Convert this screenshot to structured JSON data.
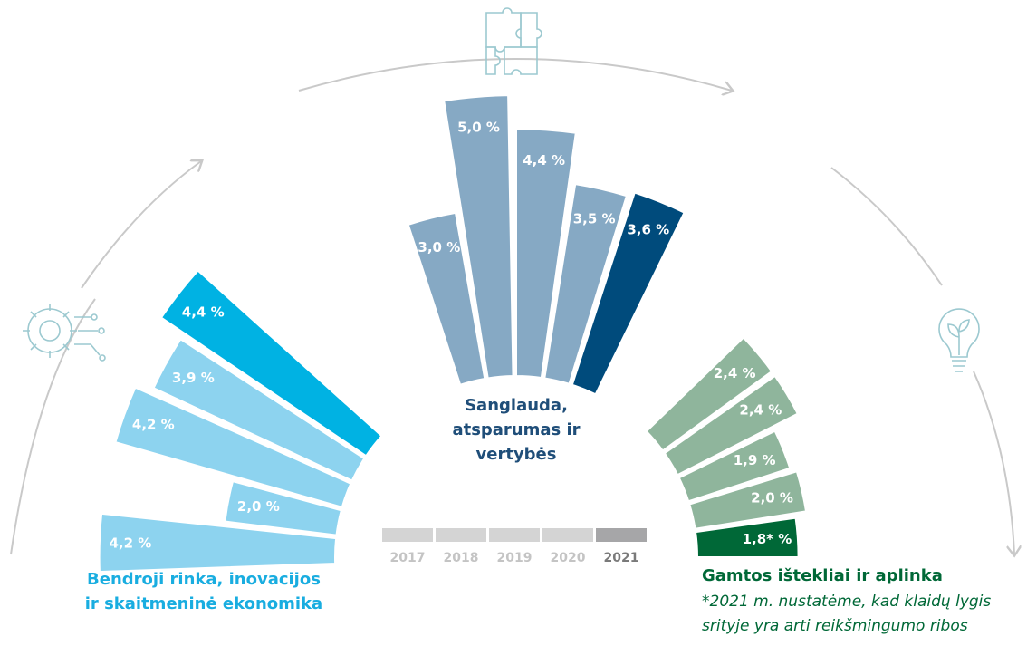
{
  "chart_data": {
    "type": "radial-bar",
    "categories": [
      "2017",
      "2018",
      "2019",
      "2020",
      "2021"
    ],
    "legend_colors": [
      "#d4d4d4",
      "#d4d4d4",
      "#d4d4d4",
      "#d4d4d4",
      "#a6a6a8"
    ],
    "series": [
      {
        "name": [
          "Bendroji rinka, inovacijos",
          "ir skaitmeninė ekonomika"
        ],
        "color": "#8dd3ef",
        "highlight_color": "#00b2e3",
        "name_color": "#19ade0",
        "values": [
          4.2,
          2.0,
          4.2,
          3.9,
          4.4
        ],
        "value_labels": [
          "4,2 %",
          "2,0 %",
          "4,2 %",
          "3,9 %",
          "4,4 %"
        ]
      },
      {
        "name": [
          "Sanglauda,",
          "atsparumas ir",
          "vertybės"
        ],
        "color": "#86a9c4",
        "highlight_color": "#004b7c",
        "name_color": "#1f4e79",
        "values": [
          3.0,
          5.0,
          4.4,
          3.5,
          3.6
        ],
        "value_labels": [
          "3,0 %",
          "5,0 %",
          "4,4 %",
          "3,5 %",
          "3,6 %"
        ]
      },
      {
        "name": [
          "Gamtos ištekliai ir aplinka"
        ],
        "color": "#8fb59c",
        "highlight_color": "#006837",
        "name_color": "#006837",
        "values": [
          2.4,
          2.4,
          1.9,
          2.0,
          1.8
        ],
        "value_labels": [
          "2,4 %",
          "2,4 %",
          "1,9 %",
          "2,0 %",
          "1,8* %"
        ]
      }
    ],
    "footnote": [
      "*2021 m. nustatėme, kad klaidų lygis",
      "srityje yra arti reikšmingumo ribos"
    ]
  }
}
